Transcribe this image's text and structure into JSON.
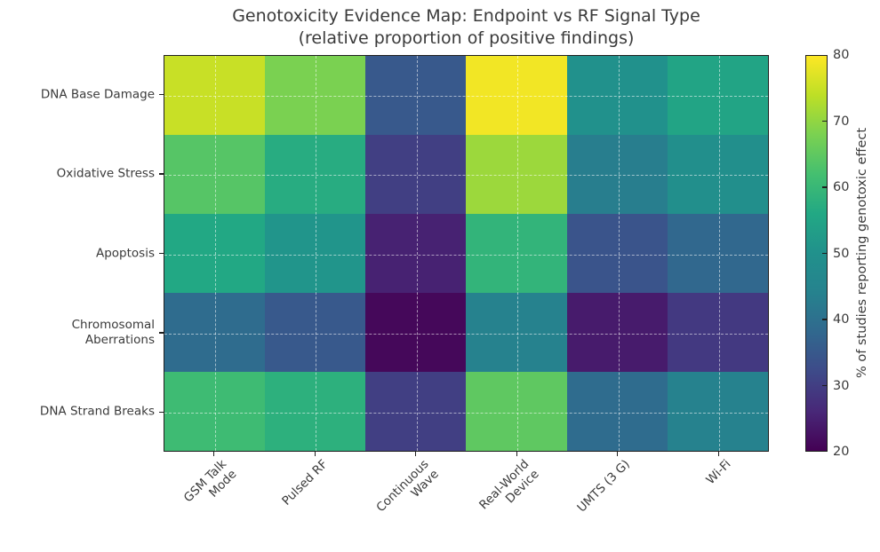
{
  "title": {
    "line1": "Genotoxicity Evidence Map: Endpoint vs RF Signal Type",
    "line2": "(relative proportion of positive findings)"
  },
  "colors": {
    "background": "#ffffff",
    "text": "#3a3a3a",
    "spine": "#1f1f1f",
    "gridline": "rgba(255,255,255,0.55)"
  },
  "chart_data": {
    "type": "heatmap",
    "title": "Genotoxicity Evidence Map: Endpoint vs RF Signal Type (relative proportion of positive findings)",
    "x_categories": [
      "GSM Talk\nMode",
      "Pulsed RF",
      "Continuous\nWave",
      "Real-World\nDevice",
      "UMTS (3 G)",
      "Wi-Fi"
    ],
    "y_categories": [
      "DNA Base Damage",
      "Oxidative Stress",
      "Apoptosis",
      "Chromosomal\nAberrations",
      "DNA Strand Breaks"
    ],
    "values": [
      [
        75,
        68,
        35,
        79,
        50,
        55
      ],
      [
        64,
        57,
        30,
        71,
        43,
        49
      ],
      [
        56,
        51,
        25,
        59,
        34,
        38
      ],
      [
        39,
        35,
        21,
        44,
        24,
        29
      ],
      [
        61,
        58,
        30,
        65,
        39,
        44
      ]
    ],
    "value_unit": "% of studies reporting genotoxic effect",
    "cell_colors": [
      [
        "#c8e026",
        "#7ad151",
        "#38598c",
        "#f2e625",
        "#21918c",
        "#22a485"
      ],
      [
        "#56c566",
        "#28ac81",
        "#413f83",
        "#9cd83c",
        "#287e8e",
        "#228f8c"
      ],
      [
        "#22a884",
        "#21958b",
        "#472272",
        "#33b47a",
        "#3a548b",
        "#31688e"
      ],
      [
        "#2f6c8e",
        "#38598c",
        "#45085a",
        "#26828e",
        "#471b6c",
        "#433981"
      ],
      [
        "#3ebb73",
        "#2db07d",
        "#413f83",
        "#5fc861",
        "#2f6c8e",
        "#26828e"
      ]
    ],
    "colorbar": {
      "label": "% of studies reporting genotoxic effect",
      "ticks": [
        20,
        30,
        40,
        50,
        60,
        70,
        80
      ],
      "vmin": 20,
      "vmax": 80,
      "colormap": "viridis",
      "gradient_stops": [
        "#440154",
        "#482878",
        "#3e4a89",
        "#31688e",
        "#26828e",
        "#21918c",
        "#22a884",
        "#44bf70",
        "#7ad151",
        "#bddf26",
        "#fde725"
      ]
    },
    "grid": {
      "visible": true,
      "style": "dashed",
      "position": "cell-centers"
    },
    "axes": {
      "x_tick_rotation_deg": 45,
      "legend": "none"
    }
  }
}
